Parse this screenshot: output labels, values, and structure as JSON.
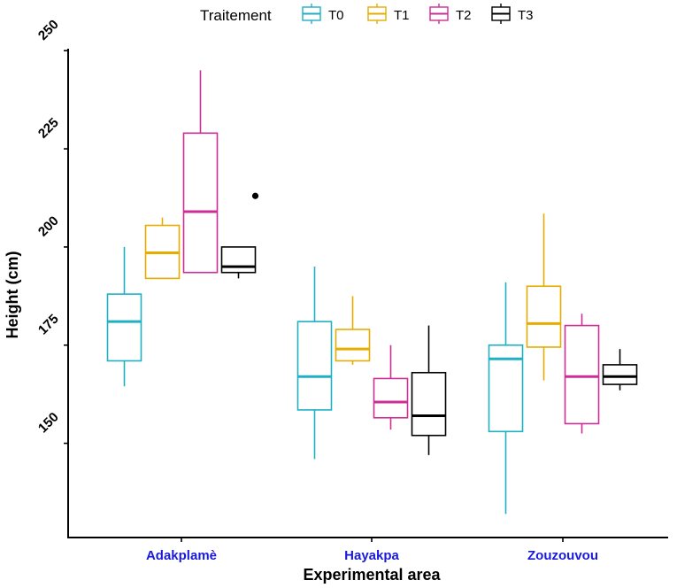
{
  "chart_data": {
    "type": "boxplot",
    "title": "",
    "xlabel": "Experimental area",
    "ylabel": "Height (cm)",
    "ylim": [
      126,
      250.5
    ],
    "yticks": [
      150,
      175,
      200,
      225,
      250
    ],
    "grid": false,
    "legend": {
      "title": "Traitement",
      "position": "top"
    },
    "categories": [
      "Adakplamè",
      "Hayakpa",
      "Zouzouvou"
    ],
    "series": [
      {
        "name": "T0",
        "color": "#1fb0c4",
        "boxes": [
          {
            "min": 164.5,
            "q1": 171,
            "median": 181,
            "q3": 188,
            "max": 200,
            "outliers": []
          },
          {
            "min": 146,
            "q1": 158.5,
            "median": 167,
            "q3": 181,
            "max": 195,
            "outliers": []
          },
          {
            "min": 132,
            "q1": 153,
            "median": 171.5,
            "q3": 175,
            "max": 191,
            "outliers": []
          }
        ]
      },
      {
        "name": "T1",
        "color": "#e6ac00",
        "boxes": [
          {
            "min": 192,
            "q1": 192,
            "median": 198.5,
            "q3": 205.5,
            "max": 207.5,
            "outliers": []
          },
          {
            "min": 170,
            "q1": 171,
            "median": 174,
            "q3": 179,
            "max": 187.5,
            "outliers": []
          },
          {
            "min": 166,
            "q1": 174.5,
            "median": 180.5,
            "q3": 190,
            "max": 208.5,
            "outliers": []
          }
        ]
      },
      {
        "name": "T2",
        "color": "#cc2e95",
        "boxes": [
          {
            "min": 193.5,
            "q1": 193.5,
            "median": 209,
            "q3": 229,
            "max": 245,
            "outliers": []
          },
          {
            "min": 153.5,
            "q1": 156.5,
            "median": 160.5,
            "q3": 166.5,
            "max": 175,
            "outliers": []
          },
          {
            "min": 152.5,
            "q1": 155,
            "median": 167,
            "q3": 180,
            "max": 183,
            "outliers": []
          }
        ]
      },
      {
        "name": "T3",
        "color": "#000000",
        "boxes": [
          {
            "min": 192,
            "q1": 193.5,
            "median": 195,
            "q3": 200,
            "max": 200,
            "outliers": [
              213
            ]
          },
          {
            "min": 147,
            "q1": 152,
            "median": 157,
            "q3": 168,
            "max": 180,
            "outliers": []
          },
          {
            "min": 163.5,
            "q1": 165,
            "median": 167,
            "q3": 170,
            "max": 174,
            "outliers": []
          }
        ]
      }
    ]
  }
}
